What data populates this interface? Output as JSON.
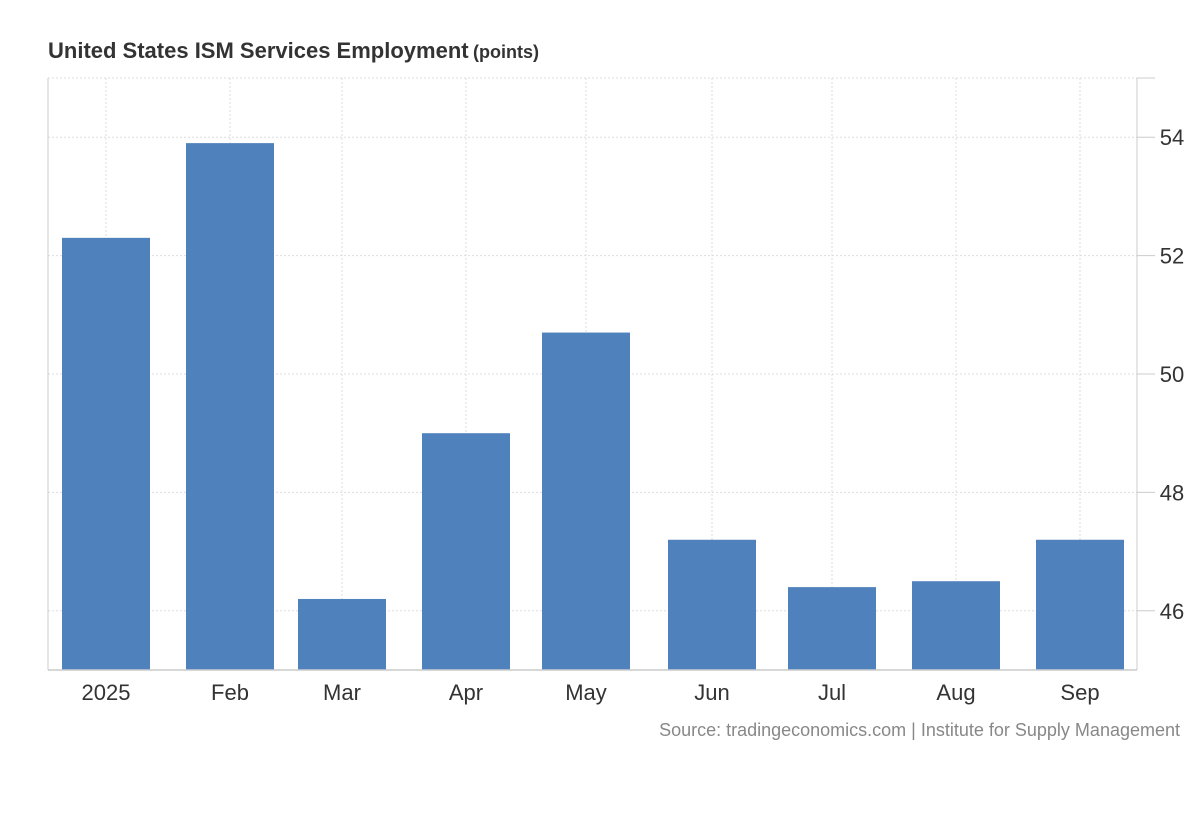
{
  "chart_data": {
    "type": "bar",
    "title": "United States ISM Services Employment",
    "unit": "(points)",
    "categories": [
      "2025",
      "Feb",
      "Mar",
      "Apr",
      "May",
      "Jun",
      "Jul",
      "Aug",
      "Sep"
    ],
    "values": [
      52.3,
      53.9,
      46.2,
      49.0,
      50.7,
      47.2,
      46.4,
      46.5,
      47.2
    ],
    "ylim": [
      45.0,
      55.0
    ],
    "yticks": [
      46,
      48,
      50,
      52,
      54
    ],
    "y_axis_side": "right",
    "grid": true,
    "bar_color": "#4f81bd",
    "source": "Source: tradingeconomics.com | Institute for Supply Management"
  }
}
